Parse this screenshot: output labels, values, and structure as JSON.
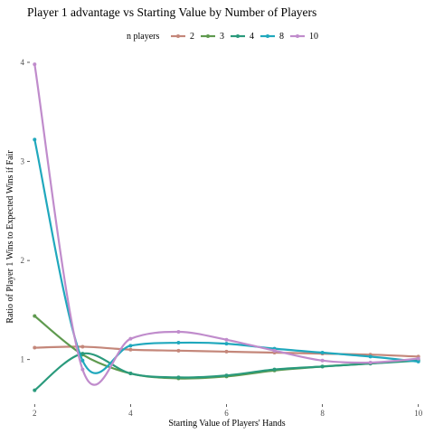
{
  "chart_data": {
    "type": "line",
    "title": "Player 1 advantage vs Starting Value by Number of Players",
    "xlabel": "Starting Value of Players' Hands",
    "ylabel": "Ratio of Player 1 Wins to Expected Wins if Fair",
    "xlim": [
      1.9,
      10.1
    ],
    "ylim": [
      0.55,
      4.1
    ],
    "x_ticks": [
      "2",
      "4",
      "6",
      "8",
      "10"
    ],
    "y_ticks": [
      "1",
      "2",
      "3",
      "4"
    ],
    "grid": false,
    "legend": {
      "title": "n players",
      "placement": "top",
      "entries": [
        "2",
        "3",
        "4",
        "8",
        "10"
      ]
    },
    "x": [
      2,
      3,
      4,
      5,
      6,
      7,
      8,
      9,
      10
    ],
    "series": [
      {
        "name": "2",
        "color": "#c4877a",
        "values": [
          1.12,
          1.13,
          1.1,
          1.09,
          1.08,
          1.07,
          1.06,
          1.05,
          1.03
        ]
      },
      {
        "name": "3",
        "color": "#5f9a4f",
        "values": [
          1.44,
          1.05,
          0.86,
          0.81,
          0.83,
          0.89,
          0.93,
          0.96,
          1.0
        ]
      },
      {
        "name": "4",
        "color": "#2a9a7c",
        "values": [
          0.69,
          1.06,
          0.86,
          0.82,
          0.84,
          0.9,
          0.93,
          0.96,
          0.99
        ]
      },
      {
        "name": "8",
        "color": "#20a8bd",
        "values": [
          3.22,
          0.99,
          1.14,
          1.17,
          1.16,
          1.11,
          1.07,
          1.03,
          0.98
        ]
      },
      {
        "name": "10",
        "color": "#c08ccc",
        "values": [
          3.98,
          0.9,
          1.21,
          1.28,
          1.2,
          1.09,
          0.99,
          0.97,
          1.01
        ]
      }
    ]
  }
}
